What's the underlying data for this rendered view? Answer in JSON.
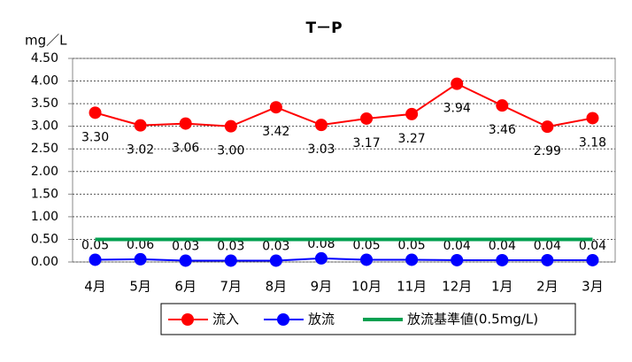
{
  "chart_data": {
    "type": "line",
    "title": "T－P",
    "y_label": "mg／L",
    "categories": [
      "4月",
      "5月",
      "6月",
      "7月",
      "8月",
      "9月",
      "10月",
      "11月",
      "12月",
      "1月",
      "2月",
      "3月"
    ],
    "series": [
      {
        "name": "流入",
        "color": "#ff0000",
        "marker": true,
        "values": [
          3.3,
          3.02,
          3.06,
          3.0,
          3.42,
          3.03,
          3.17,
          3.27,
          3.94,
          3.46,
          2.99,
          3.18
        ],
        "value_labels": [
          "3.30",
          "3.02",
          "3.06",
          "3.00",
          "3.42",
          "3.03",
          "3.17",
          "3.27",
          "3.94",
          "3.46",
          "2.99",
          "3.18"
        ],
        "label_side": "below"
      },
      {
        "name": "放流",
        "color": "#0000ff",
        "marker": true,
        "values": [
          0.05,
          0.06,
          0.03,
          0.03,
          0.03,
          0.08,
          0.05,
          0.05,
          0.04,
          0.04,
          0.04,
          0.04
        ],
        "label_side": "above"
      },
      {
        "name": "放流基準値(0.5mg/L)",
        "color": "#00a050",
        "marker": false,
        "values": [
          0.5,
          0.5,
          0.5,
          0.5,
          0.5,
          0.5,
          0.5,
          0.5,
          0.5,
          0.5,
          0.5,
          0.5
        ]
      }
    ],
    "ylim": [
      0,
      4.5
    ],
    "yticks": [
      {
        "value": 0,
        "label": "0.00"
      },
      {
        "value": 0.5,
        "label": "0.50"
      },
      {
        "value": 1,
        "label": "1.00"
      },
      {
        "value": 1.5,
        "label": "1.50"
      },
      {
        "value": 2,
        "label": "2.00"
      },
      {
        "value": 2.5,
        "label": "2.50"
      },
      {
        "value": 3,
        "label": "3.00"
      },
      {
        "value": 3.5,
        "label": "3.50"
      },
      {
        "value": 4,
        "label": "4.00"
      },
      {
        "value": 4.5,
        "label": "4.50"
      }
    ],
    "grid": true,
    "legend": "bottom"
  }
}
